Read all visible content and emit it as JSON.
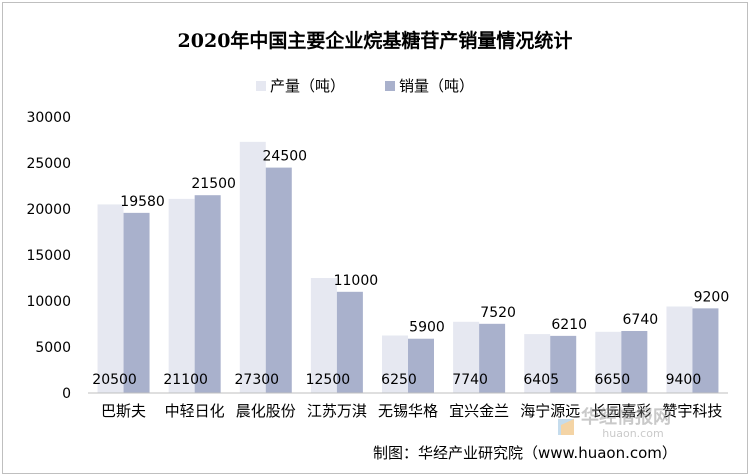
{
  "chart_data": {
    "type": "bar",
    "title": "2020年中国主要企业烷基糖苷产销量情况统计",
    "categories": [
      "巴斯夫",
      "中轻日化",
      "晨化股份",
      "江苏万淇",
      "无锡华格",
      "宜兴金兰",
      "海宁源远",
      "长园嘉彩",
      "赞宇科技"
    ],
    "series": [
      {
        "name": "产量（吨）",
        "values": [
          20500,
          21100,
          27300,
          12500,
          6250,
          7740,
          6405,
          6650,
          9400
        ],
        "color": "#e6e8f1",
        "label_position": "inside-bottom"
      },
      {
        "name": "销量（吨）",
        "values": [
          19580,
          21500,
          24500,
          11000,
          5900,
          7520,
          6210,
          6740,
          9200
        ],
        "color": "#a9b1cc",
        "label_position": "above"
      }
    ],
    "ylim": [
      0,
      30000
    ],
    "yticks": [
      0,
      5000,
      10000,
      15000,
      20000,
      25000,
      30000
    ],
    "legend_position": "top",
    "grid": false,
    "source": "制图：华经产业研究院（www.huaon.com）",
    "watermark": {
      "text": "华经情报网",
      "subtext": "huaon.com"
    }
  }
}
